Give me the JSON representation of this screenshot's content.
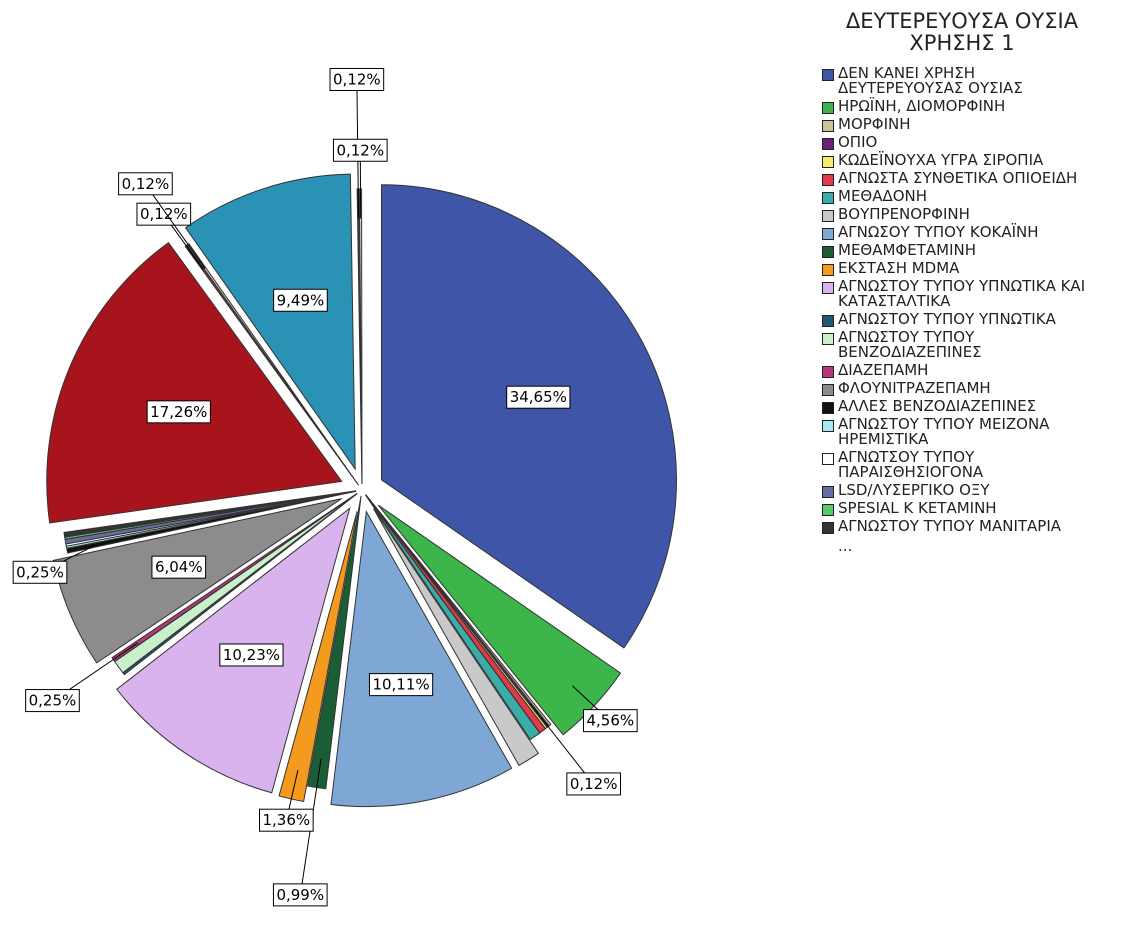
{
  "chart_data": {
    "type": "pie",
    "legend_title": "ΔΕΥΤΕΡΕΥΟΥΣΑ ΟΥΣΙΑ ΧΡΗΣΗΣ 1",
    "legend_more": "...",
    "categories": [
      "ΔΕΝ ΚΑΝΕΙ ΧΡΗΣΗ ΔΕΥΤΕΡΕΥΟΥΣΑΣ ΟΥΣΙΑΣ",
      "ΗΡΩΪΝΗ, ΔΙΟΜΟΡΦΙΝΗ",
      "ΜΟΡΦΙΝΗ",
      "ΟΠΙΟ",
      "ΚΩΔΕΪΝΟΥΧΑ ΥΓΡΑ ΣΙΡΟΠΙΑ",
      "ΑΓΝΩΣΤΑ ΣΥΝΘΕΤΙΚΑ ΟΠΙΟΕΙΔΗ",
      "ΜΕΘΑΔΟΝΗ",
      "ΒΟΥΠΡΕΝΟΡΦΙΝΗ",
      "ΑΓΝΩΣΟΥ ΤΥΠΟΥ ΚΟΚΑΪΝΗ",
      "ΜΕΘΑΜΦΕΤΑΜΙΝΗ",
      "ΕΚΣΤΑΣΗ MDMA",
      "ΑΓΝΩΣΤΟΥ ΤΥΠΟΥ ΥΠΝΩΤΙΚΑ ΚΑΙ ΚΑΤΑΣΤΑΛΤΙΚΑ",
      "ΑΓΝΩΣΤΟΥ ΤΥΠΟΥ ΥΠΝΩΤΙΚΑ",
      "ΑΓΝΩΣΤΟΥ ΤΥΠΟΥ ΒΕΝΖΟΔΙΑΖΕΠΙΝΕΣ",
      "ΔΙΑΖΕΠΑΜΗ",
      "ΦΛΟΥΝΙΤΡΑΖΕΠΑΜΗ",
      "ΑΛΛΕΣ ΒΕΝΖΟΔΙΑΖΕΠΙΝΕΣ",
      "ΑΓΝΩΣΤΟΥ ΤΥΠΟΥ ΜΕΙΖΟΝΑ ΗΡΕΜΙΣΤΙΚΑ",
      "ΑΓΝΩΤΣΟΥ ΤΥΠΟΥ ΠΑΡΑΙΣΘΗΣΙΟΓΟΝΑ",
      "LSD/ΛΥΣΕΡΓΙΚΟ ΟΞΥ",
      "SPESIAL K ΚΕΤΑΜΙΝΗ",
      "ΑΓΝΩΣΤΟΥ ΤΥΠΟΥ ΜΑΝΙΤΑΡΙΑ",
      null,
      null,
      null,
      null,
      null,
      null
    ],
    "values": [
      34.65,
      4.56,
      0.12,
      0.12,
      0.12,
      0.37,
      0.62,
      1.24,
      10.11,
      0.99,
      1.36,
      10.23,
      0.12,
      0.74,
      0.25,
      6.04,
      0.25,
      0.12,
      0.12,
      0.25,
      0.12,
      0.25,
      17.26,
      0.12,
      0.12,
      9.49,
      0.12,
      0.12
    ],
    "value_labels": [
      "34,65%",
      "4,56%",
      null,
      "0,12%",
      null,
      null,
      null,
      null,
      "10,11%",
      "0,99%",
      "1,36%",
      "10,23%",
      null,
      null,
      "0,25%",
      "6,04%",
      "0,25%",
      null,
      null,
      null,
      null,
      null,
      "17,26%",
      "0,12%",
      "0,12%",
      "9,49%",
      "0,12%",
      "0,12%"
    ],
    "colors": [
      "#3f56a8",
      "#3cb54a",
      "#c8c49a",
      "#6b1f7a",
      "#f2ee6c",
      "#e33a4a",
      "#3aada8",
      "#c9c9c9",
      "#7fa7d6",
      "#1b5e35",
      "#f39a1f",
      "#d8b3ee",
      "#1f5a70",
      "#c9f0c9",
      "#b03a7a",
      "#8c8c8c",
      "#111111",
      "#a8e8ee",
      "#ffffff",
      "#6a6aa8",
      "#5cc86a",
      "#333333",
      "#a8141c",
      "#7a3a3a",
      "#d0d0d0",
      "#2a92b4",
      "#444444",
      "#e8e8e8"
    ]
  }
}
